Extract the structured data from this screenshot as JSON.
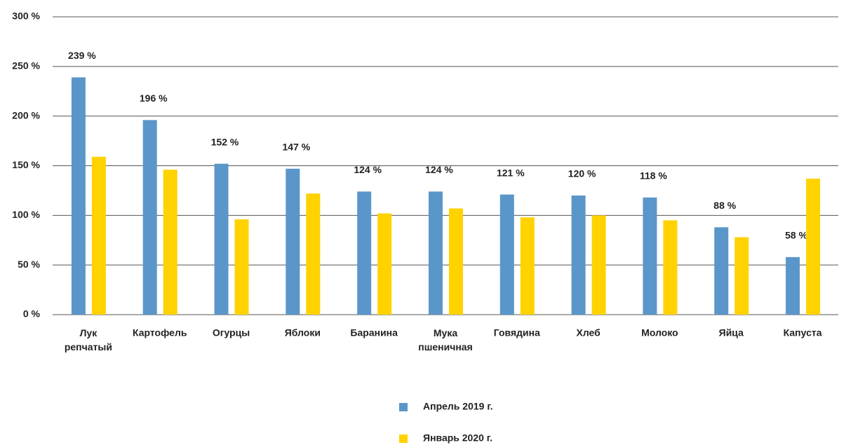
{
  "chart_data": {
    "type": "bar",
    "categories": [
      "Лук репчатый",
      "Картофель",
      "Огурцы",
      "Яблоки",
      "Баранина",
      "Мука пшеничная",
      "Говядина",
      "Хлеб",
      "Молоко",
      "Яйца",
      "Капуста"
    ],
    "series": [
      {
        "name": "Апрель 2019 г.",
        "color": "#5a96c9",
        "values": [
          239,
          196,
          152,
          147,
          124,
          124,
          121,
          120,
          118,
          88,
          58
        ],
        "value_labels": [
          "239 %",
          "196 %",
          "152 %",
          "147 %",
          "124 %",
          "124 %",
          "121 %",
          "120 %",
          "118 %",
          "88 %",
          "58 %"
        ]
      },
      {
        "name": "Январь 2020 г.",
        "color": "#ffd200",
        "values": [
          159,
          146,
          96,
          122,
          102,
          107,
          98,
          100,
          95,
          78,
          137
        ]
      }
    ],
    "ylim": [
      0,
      300
    ],
    "yticks": [
      {
        "value": 0,
        "label": "0 %"
      },
      {
        "value": 50,
        "label": "50 %"
      },
      {
        "value": 100,
        "label": "100 %"
      },
      {
        "value": 150,
        "label": "150 %"
      },
      {
        "value": 200,
        "label": "200 %"
      },
      {
        "value": 250,
        "label": "250 %"
      },
      {
        "value": 300,
        "label": "300 %"
      }
    ],
    "grid": true
  }
}
